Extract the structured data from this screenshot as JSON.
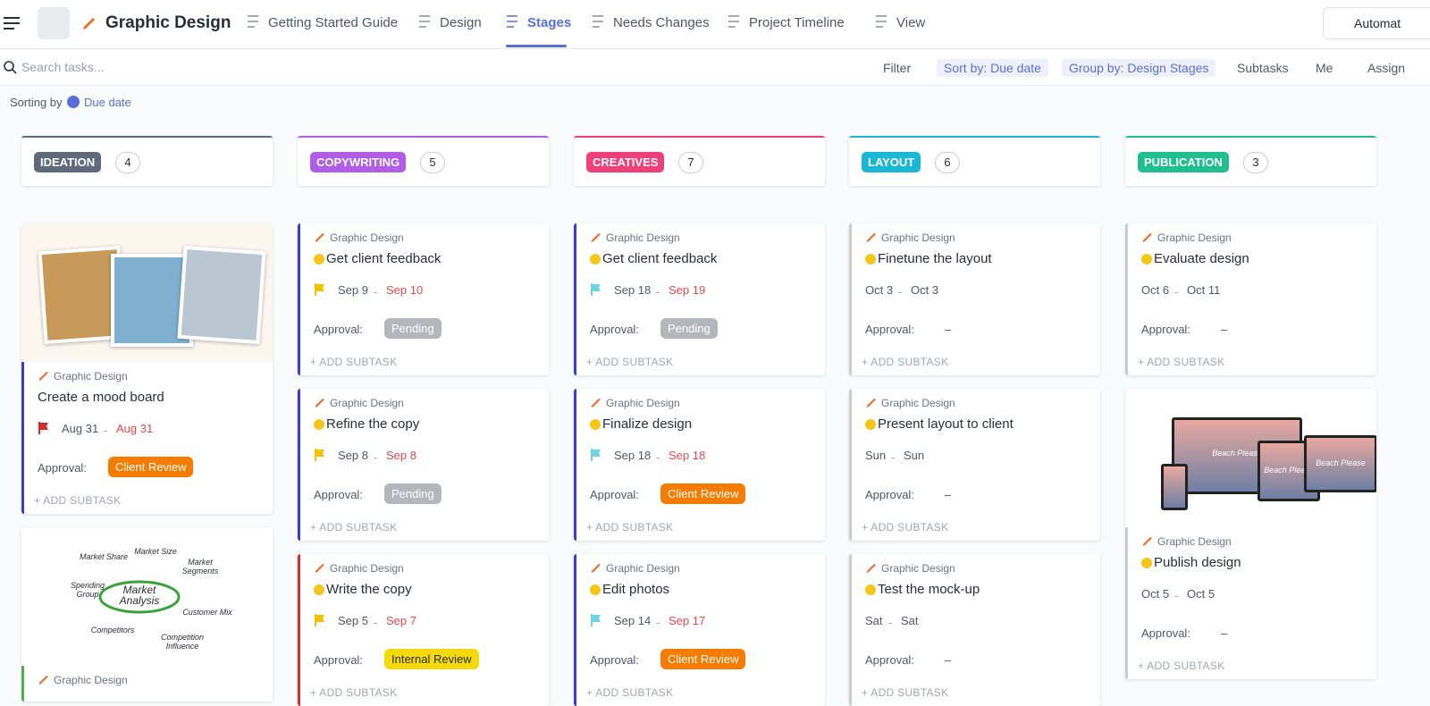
{
  "header": {
    "workspace": "Graphic Design",
    "tabs": [
      "Getting Started Guide",
      "Design",
      "Stages",
      "Needs Changes",
      "Project Timeline",
      "View"
    ],
    "active_tab": 2,
    "automations": "Automat"
  },
  "toolbar": {
    "search": "Search tasks...",
    "filter": "Filter",
    "sort": "Sort by: Due date",
    "group": "Group by: Design Stages",
    "subtasks": "Subtasks",
    "me": "Me",
    "assign": "Assign"
  },
  "sorting": {
    "label": "Sorting by",
    "value": "Due date"
  },
  "date_separator": "-",
  "approval_label": "Approval:",
  "add_subtask": "+ ADD SUBTASK",
  "columns": [
    {
      "name": "IDEATION",
      "count": 4,
      "color": "#5f6b7a",
      "cards": [
        {
          "image": {
            "kind": "photos"
          },
          "accent": "#3b3bd4",
          "list": "Graphic Design",
          "title": "Create a mood board",
          "start": "Aug 31",
          "due": "Aug 31",
          "due_color": "#e5484d",
          "flag": "#d62c2c",
          "approval": "Client Review",
          "approval_color": "#f57c00"
        },
        {
          "image": {
            "kind": "diagram",
            "center": "Market Analysis",
            "labels": [
              "Market Share",
              "Market Size",
              "Market Segments",
              "Spending Group",
              "Customer Mix",
              "Competitors",
              "Competition Influence"
            ]
          },
          "accent": "#4caf50",
          "list": "Graphic Design"
        }
      ]
    },
    {
      "name": "COPYWRITING",
      "count": 5,
      "color": "#b25de8",
      "cards": [
        {
          "accent": "#3b3bd4",
          "list": "Graphic Design",
          "title": "Get client feedback",
          "start": "Sep 9",
          "due": "Sep 10",
          "due_color": "#e5484d",
          "flag": "#f2c200",
          "approval": "Pending",
          "approval_color": "#b3b6bb"
        },
        {
          "accent": "#3b3bd4",
          "list": "Graphic Design",
          "title": "Refine the copy",
          "start": "Sep 8",
          "due": "Sep 8",
          "due_color": "#e5484d",
          "flag": "#f2c200",
          "approval": "Pending",
          "approval_color": "#b3b6bb"
        },
        {
          "accent": "#d62c2c",
          "list": "Graphic Design",
          "title": "Write the copy",
          "start": "Sep 5",
          "due": "Sep 7",
          "due_color": "#e5484d",
          "flag": "#f2c200",
          "approval": "Internal Review",
          "approval_color": "#f5d90a"
        }
      ]
    },
    {
      "name": "CREATIVES",
      "count": 7,
      "color": "#f0407a",
      "cards": [
        {
          "accent": "#3b3bd4",
          "list": "Graphic Design",
          "title": "Get client feedback",
          "start": "Sep 18",
          "due": "Sep 19",
          "due_color": "#e5484d",
          "flag": "#6fd3e6",
          "approval": "Pending",
          "approval_color": "#b3b6bb"
        },
        {
          "accent": "#3b3bd4",
          "list": "Graphic Design",
          "title": "Finalize design",
          "start": "Sep 18",
          "due": "Sep 18",
          "due_color": "#e5484d",
          "flag": "#6fd3e6",
          "approval": "Client Review",
          "approval_color": "#f57c00"
        },
        {
          "accent": "#3b3bd4",
          "list": "Graphic Design",
          "title": "Edit photos",
          "start": "Sep 14",
          "due": "Sep 17",
          "due_color": "#e5484d",
          "flag": "#6fd3e6",
          "approval": "Client Review",
          "approval_color": "#f57c00"
        }
      ]
    },
    {
      "name": "LAYOUT",
      "count": 6,
      "color": "#1bb8d6",
      "cards": [
        {
          "accent": "#c8cbd0",
          "list": "Graphic Design",
          "title": "Finetune the layout",
          "start": "Oct 3",
          "due": "Oct 3",
          "approval": "–"
        },
        {
          "accent": "#c8cbd0",
          "list": "Graphic Design",
          "title": "Present layout to client",
          "start": "Sun",
          "due": "Sun",
          "approval": "–"
        },
        {
          "accent": "#c8cbd0",
          "list": "Graphic Design",
          "title": "Test the mock-up",
          "start": "Sat",
          "due": "Sat",
          "approval": "–"
        }
      ]
    },
    {
      "name": "PUBLICATION",
      "count": 3,
      "color": "#1fbf8f",
      "cards": [
        {
          "accent": "#c8cbd0",
          "list": "Graphic Design",
          "title": "Evaluate design",
          "start": "Oct 6",
          "due": "Oct 11",
          "approval": "–"
        },
        {
          "image": {
            "kind": "devices",
            "caption": "Beach Please"
          },
          "accent": "#c8cbd0",
          "list": "Graphic Design",
          "title": "Publish design",
          "start": "Oct 5",
          "due": "Oct 5",
          "approval": "–"
        }
      ]
    }
  ]
}
